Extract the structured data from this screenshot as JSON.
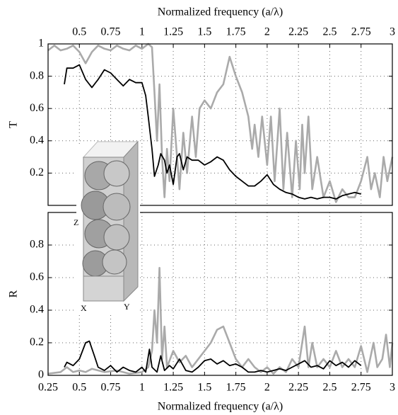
{
  "chart_data": [
    {
      "type": "line",
      "ylabel": "T",
      "xlabel": "Normalized frequency (a/λ)",
      "xlim": [
        0.25,
        3
      ],
      "xticks": [
        0.5,
        0.75,
        1,
        1.25,
        1.5,
        1.75,
        2,
        2.25,
        2.5,
        2.75,
        3
      ],
      "ylim": [
        0,
        1
      ],
      "yticks": [
        0.2,
        0.4,
        0.6,
        0.8,
        1
      ],
      "grid": true,
      "series": [
        {
          "color": "#aaaaaa",
          "x": [
            0.25,
            0.3,
            0.35,
            0.4,
            0.45,
            0.5,
            0.55,
            0.6,
            0.65,
            0.7,
            0.75,
            0.8,
            0.85,
            0.9,
            0.95,
            1.0,
            1.05,
            1.08,
            1.1,
            1.12,
            1.14,
            1.16,
            1.18,
            1.2,
            1.22,
            1.25,
            1.28,
            1.3,
            1.33,
            1.36,
            1.4,
            1.43,
            1.46,
            1.5,
            1.55,
            1.6,
            1.65,
            1.7,
            1.75,
            1.8,
            1.85,
            1.88,
            1.9,
            1.93,
            1.96,
            2.0,
            2.03,
            2.06,
            2.1,
            2.13,
            2.16,
            2.2,
            2.23,
            2.26,
            2.28,
            2.3,
            2.33,
            2.36,
            2.4,
            2.45,
            2.5,
            2.55,
            2.6,
            2.65,
            2.7,
            2.75,
            2.8,
            2.83,
            2.86,
            2.9,
            2.93,
            2.96,
            3.0
          ],
          "values": [
            0.96,
            0.99,
            0.96,
            0.97,
            0.99,
            0.95,
            0.88,
            0.95,
            0.99,
            0.97,
            0.96,
            0.99,
            0.97,
            0.96,
            0.99,
            0.97,
            1.0,
            0.98,
            0.7,
            0.4,
            0.75,
            0.3,
            0.05,
            0.35,
            0.15,
            0.6,
            0.3,
            0.1,
            0.45,
            0.2,
            0.55,
            0.3,
            0.6,
            0.65,
            0.6,
            0.7,
            0.75,
            0.92,
            0.8,
            0.7,
            0.55,
            0.35,
            0.5,
            0.3,
            0.55,
            0.25,
            0.55,
            0.15,
            0.6,
            0.1,
            0.45,
            0.05,
            0.4,
            0.1,
            0.5,
            0.2,
            0.55,
            0.1,
            0.3,
            0.05,
            0.15,
            0.02,
            0.1,
            0.05,
            0.05,
            0.15,
            0.3,
            0.1,
            0.2,
            0.05,
            0.3,
            0.15,
            0.3
          ]
        },
        {
          "color": "#000000",
          "x": [
            0.38,
            0.4,
            0.45,
            0.5,
            0.55,
            0.6,
            0.65,
            0.7,
            0.75,
            0.8,
            0.85,
            0.9,
            0.95,
            1.0,
            1.03,
            1.05,
            1.08,
            1.1,
            1.13,
            1.15,
            1.18,
            1.2,
            1.22,
            1.25,
            1.28,
            1.3,
            1.33,
            1.36,
            1.4,
            1.45,
            1.5,
            1.55,
            1.6,
            1.65,
            1.7,
            1.75,
            1.8,
            1.85,
            1.9,
            1.95,
            2.0,
            2.05,
            2.1,
            2.15,
            2.2,
            2.25,
            2.3,
            2.35,
            2.4,
            2.45,
            2.5,
            2.55,
            2.6,
            2.65,
            2.7,
            2.75
          ],
          "values": [
            0.75,
            0.85,
            0.85,
            0.87,
            0.78,
            0.73,
            0.78,
            0.84,
            0.82,
            0.78,
            0.74,
            0.78,
            0.76,
            0.76,
            0.68,
            0.55,
            0.35,
            0.18,
            0.25,
            0.32,
            0.28,
            0.2,
            0.25,
            0.13,
            0.3,
            0.32,
            0.22,
            0.3,
            0.28,
            0.28,
            0.25,
            0.27,
            0.3,
            0.28,
            0.22,
            0.18,
            0.15,
            0.12,
            0.12,
            0.15,
            0.19,
            0.13,
            0.1,
            0.08,
            0.07,
            0.05,
            0.04,
            0.05,
            0.04,
            0.05,
            0.05,
            0.04,
            0.06,
            0.07,
            0.08,
            0.07
          ]
        }
      ]
    },
    {
      "type": "line",
      "ylabel": "R",
      "xlabel": "Normalized frequency (a/λ)",
      "xlim": [
        0.25,
        3
      ],
      "xticks": [
        0.25,
        0.5,
        0.75,
        1,
        1.25,
        1.5,
        1.75,
        2,
        2.25,
        2.5,
        2.75,
        3
      ],
      "ylim": [
        0,
        1
      ],
      "yticks": [
        0,
        0.2,
        0.4,
        0.6,
        0.8
      ],
      "grid": true,
      "series": [
        {
          "color": "#aaaaaa",
          "x": [
            0.25,
            0.35,
            0.4,
            0.45,
            0.5,
            0.55,
            0.6,
            0.7,
            0.8,
            0.9,
            1.0,
            1.05,
            1.08,
            1.1,
            1.12,
            1.14,
            1.16,
            1.18,
            1.2,
            1.25,
            1.3,
            1.35,
            1.4,
            1.45,
            1.5,
            1.55,
            1.6,
            1.65,
            1.7,
            1.75,
            1.8,
            1.85,
            1.9,
            1.95,
            2.0,
            2.05,
            2.1,
            2.15,
            2.2,
            2.25,
            2.3,
            2.33,
            2.36,
            2.4,
            2.45,
            2.5,
            2.55,
            2.6,
            2.65,
            2.7,
            2.75,
            2.8,
            2.85,
            2.88,
            2.92,
            2.95,
            2.98,
            3.0
          ],
          "values": [
            0.01,
            0.02,
            0.05,
            0.02,
            0.03,
            0.02,
            0.04,
            0.02,
            0.03,
            0.01,
            0.02,
            0.05,
            0.15,
            0.4,
            0.2,
            0.66,
            0.1,
            0.3,
            0.05,
            0.15,
            0.08,
            0.12,
            0.05,
            0.1,
            0.15,
            0.2,
            0.28,
            0.3,
            0.2,
            0.1,
            0.05,
            0.1,
            0.05,
            0.02,
            0.05,
            0.01,
            0.05,
            0.02,
            0.1,
            0.05,
            0.3,
            0.05,
            0.2,
            0.05,
            0.1,
            0.05,
            0.15,
            0.05,
            0.1,
            0.05,
            0.18,
            0.02,
            0.2,
            0.05,
            0.1,
            0.25,
            0.05,
            0.2
          ]
        },
        {
          "color": "#000000",
          "x": [
            0.38,
            0.4,
            0.45,
            0.5,
            0.55,
            0.58,
            0.62,
            0.65,
            0.7,
            0.75,
            0.8,
            0.85,
            0.9,
            0.95,
            1.0,
            1.03,
            1.06,
            1.08,
            1.12,
            1.15,
            1.18,
            1.22,
            1.25,
            1.3,
            1.35,
            1.4,
            1.45,
            1.5,
            1.55,
            1.6,
            1.65,
            1.7,
            1.75,
            1.8,
            1.85,
            1.9,
            1.95,
            2.0,
            2.05,
            2.1,
            2.15,
            2.2,
            2.25,
            2.3,
            2.35,
            2.4,
            2.45,
            2.5,
            2.55,
            2.6,
            2.65,
            2.7,
            2.75
          ],
          "values": [
            0.05,
            0.08,
            0.06,
            0.1,
            0.2,
            0.21,
            0.12,
            0.05,
            0.03,
            0.06,
            0.02,
            0.05,
            0.03,
            0.02,
            0.05,
            0.02,
            0.16,
            0.05,
            0.02,
            0.12,
            0.03,
            0.06,
            0.04,
            0.1,
            0.03,
            0.02,
            0.05,
            0.09,
            0.1,
            0.07,
            0.09,
            0.06,
            0.07,
            0.05,
            0.02,
            0.02,
            0.03,
            0.02,
            0.03,
            0.04,
            0.03,
            0.05,
            0.07,
            0.09,
            0.05,
            0.06,
            0.04,
            0.09,
            0.06,
            0.08,
            0.05,
            0.09,
            0.06
          ]
        }
      ]
    }
  ],
  "inset": {
    "labels": [
      "Z",
      "X",
      "Y"
    ]
  }
}
